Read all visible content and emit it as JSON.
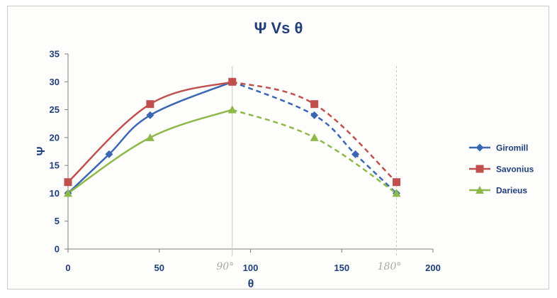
{
  "chart_data": {
    "type": "line",
    "title": "Ψ Vs θ",
    "xlabel": "θ",
    "ylabel": "Ψ",
    "xlim": [
      0,
      200
    ],
    "ylim": [
      0,
      35
    ],
    "x_ticks": [
      0,
      50,
      100,
      150,
      200
    ],
    "y_ticks": [
      0,
      5,
      10,
      15,
      20,
      25,
      30,
      35
    ],
    "x_tick_labels": [
      "0",
      "50",
      "100",
      "150",
      "200"
    ],
    "y_tick_labels": [
      "0",
      "5",
      "10",
      "15",
      "20",
      "25",
      "30",
      "35"
    ],
    "grid": false,
    "legend_position": "right",
    "solid_until_x": 90,
    "series": [
      {
        "name": "Giromill",
        "color": "#3a66b3",
        "marker": "diamond",
        "x": [
          0,
          22.5,
          45,
          90,
          135,
          157.5,
          180
        ],
        "y": [
          10,
          17,
          24,
          30,
          24,
          17,
          10
        ]
      },
      {
        "name": "Savonius",
        "color": "#c0504d",
        "marker": "square",
        "x": [
          0,
          45,
          90,
          135,
          180
        ],
        "y": [
          12,
          26,
          30,
          26,
          12
        ]
      },
      {
        "name": "Darieus",
        "color": "#8db84a",
        "marker": "triangle",
        "x": [
          0,
          45,
          90,
          135,
          180
        ],
        "y": [
          10,
          20,
          25,
          20,
          10
        ]
      }
    ],
    "annotations": [
      {
        "text": "90°",
        "x": 90,
        "style": "handwritten"
      },
      {
        "text": "180°",
        "x": 180,
        "style": "handwritten"
      }
    ]
  }
}
